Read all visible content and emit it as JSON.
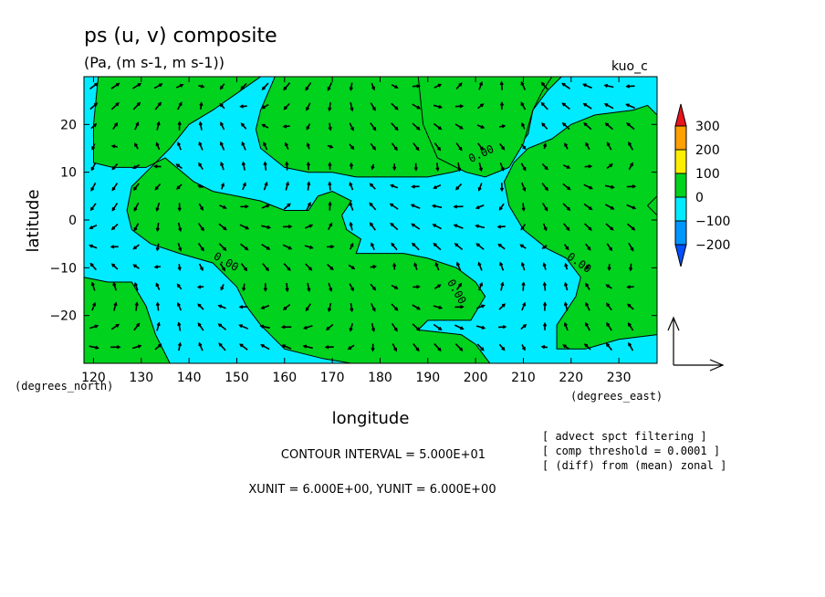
{
  "header": {
    "title": "ps (u, v) composite",
    "subtitle": "(Pa, (m s-1, m s-1))",
    "experiment": "kuo_c"
  },
  "footer": {
    "contour_interval": "CONTOUR INTERVAL = 5.000E+01",
    "units": "XUNIT = 6.000E+00, YUNIT = 6.000E+00",
    "notes": [
      "[ advect spct filtering ]",
      "[ comp threshold = 0.0001 ]",
      "[ (diff) from (mean) zonal ]"
    ]
  },
  "chart_data": {
    "type": "heatmap",
    "title": "ps (u, v) composite",
    "subtitle": "(Pa, (m s-1, m s-1))",
    "xlabel": "longitude",
    "ylabel": "latitude",
    "x_unit_label": "(degrees_east)",
    "y_unit_label": "(degrees_north)",
    "xlim": [
      118,
      238
    ],
    "ylim": [
      -30,
      30
    ],
    "x_ticks": [
      120,
      130,
      140,
      150,
      160,
      170,
      180,
      190,
      200,
      210,
      220,
      230
    ],
    "y_ticks": [
      -20,
      -10,
      0,
      10,
      20
    ],
    "contour_label": "0.00",
    "colorbar": {
      "levels": [
        "300",
        "200",
        "100",
        "0",
        "−100",
        "−200"
      ],
      "colors": [
        "#e8141e",
        "#ff9f00",
        "#ffee00",
        "#00d21e",
        "#00ebff",
        "#0096ff",
        "#0050ff"
      ]
    },
    "fill_colors": {
      "positive": "#00d21e",
      "negative": "#00ebff"
    },
    "overlay": "wind vectors (u, v)"
  }
}
